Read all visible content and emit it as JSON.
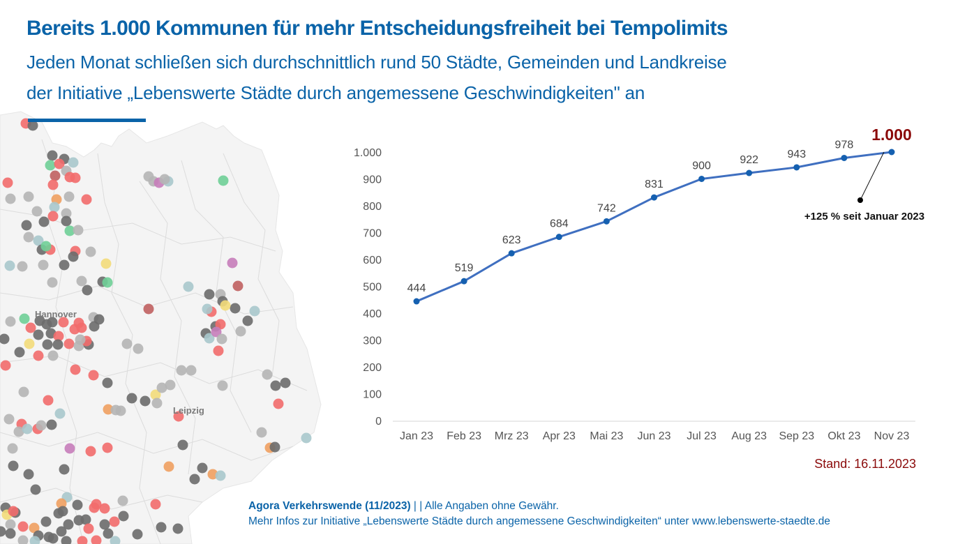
{
  "header": {
    "title": "Bereits 1.000 Kommunen für mehr Entscheidungsfreiheit bei Tempolimits",
    "subtitle_line1": "Jeden Monat schließen sich durchschnittlich rund 50 Städte, Gemeinden und Landkreise",
    "subtitle_line2": "der Initiative „Lebenswerte Städte durch angemessene Geschwindigkeiten\" an"
  },
  "map": {
    "labels": [
      "Hannover",
      "Leipzig"
    ],
    "dot_colors": {
      "dark_gray": "#6b6b6b",
      "light_gray": "#b5b5b5",
      "red": "#f26b6b",
      "dark_red": "#c06060",
      "teal": "#a9c8cc",
      "green": "#6fcf97",
      "orange": "#f0a060",
      "yellow": "#f3dc7a",
      "purple": "#c77dba"
    }
  },
  "chart_data": {
    "type": "line",
    "title": "",
    "xlabel": "",
    "ylabel": "",
    "categories": [
      "Jan 23",
      "Feb 23",
      "Mrz 23",
      "Apr 23",
      "Mai 23",
      "Jun 23",
      "Jul 23",
      "Aug 23",
      "Sep 23",
      "Okt 23",
      "Nov 23"
    ],
    "series": [
      {
        "name": "Kommunen",
        "values": [
          444,
          519,
          623,
          684,
          742,
          831,
          900,
          922,
          943,
          978,
          1000
        ]
      }
    ],
    "data_labels": [
      "444",
      "519",
      "623",
      "684",
      "742",
      "831",
      "900",
      "922",
      "943",
      "978",
      "1.000"
    ],
    "ylim": [
      0,
      1000
    ],
    "yticks": [
      0,
      100,
      200,
      300,
      400,
      500,
      600,
      700,
      800,
      900,
      1000
    ],
    "ytick_labels": [
      "0",
      "100",
      "200",
      "300",
      "400",
      "500",
      "600",
      "700",
      "800",
      "900",
      "1.000"
    ],
    "grid": false,
    "annotation": "+125 % seit Januar 2023",
    "line_color": "#3f6fc0",
    "marker_color": "#1560b0",
    "highlight_color": "#8b0a0a"
  },
  "stand": "Stand: 16.11.2023",
  "footer": {
    "source_bold": "Agora Verkehrswende (11/2023)",
    "source_rest": " | | Alle Angaben ohne Gewähr.",
    "more_info": "Mehr Infos zur Initiative „Lebenswerte Städte durch angemessene Geschwindigkeiten“ unter www.lebenswerte-staedte.de"
  }
}
